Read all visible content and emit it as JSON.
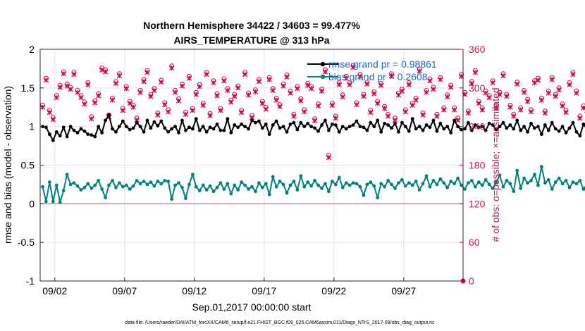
{
  "chart_data": {
    "type": "line",
    "title": "Northern Hemisphere 34422 / 34603 = 99.477%",
    "subtitle": "AIRS_TEMPERATURE @ 313 hPa",
    "xlabel": "Sep.01,2017 00:00:00 start",
    "ylabel": "rmse and bias (model - observation)",
    "ylabel_right": "# of obs: o=possible; ×=assimilated",
    "footer": "data file: /Users/raeder/DAI/ATM_forcXX/CAM6_setup/f.e21.FHIST_BGC.f09_025.CAM6assim.011/Diags_NTrS_2017-09/obs_diag_output.nc",
    "xlim": [
      0.7,
      31.0
    ],
    "ylim": [
      -1,
      2
    ],
    "ylim_right": [
      0,
      360
    ],
    "x_ticks": [
      1.75,
      6.75,
      11.75,
      16.75,
      21.75,
      26.75
    ],
    "x_tick_labels": [
      "09/02",
      "09/07",
      "09/12",
      "09/17",
      "09/22",
      "09/27"
    ],
    "y_ticks": [
      -1,
      -0.5,
      0,
      0.5,
      1,
      1.5,
      2
    ],
    "y_tick_labels": [
      "-1",
      "-0.5",
      "0",
      "0.5",
      "1",
      "1.5",
      "2"
    ],
    "y_ticks_right": [
      0,
      60,
      120,
      180,
      240,
      300,
      360
    ],
    "y_tick_labels_right": [
      "0",
      "60",
      "120",
      "180",
      "240",
      "300",
      "360"
    ],
    "grid": true,
    "legend_position": "top-right",
    "colors": {
      "rmse": "#000000",
      "bias": "#008080",
      "count": "#d6004f",
      "zero_line": "#c48a8a",
      "grid": "#e3e3e3",
      "legend_text": "#1565e0"
    },
    "x_start": 0.875,
    "x_step": 0.25,
    "series": [
      {
        "name": "rmse grand pr = 0.98861",
        "values": [
          1.0,
          0.99,
          0.9,
          0.82,
          0.93,
          0.88,
          0.99,
          0.87,
          1.0,
          0.95,
          0.92,
          0.97,
          0.94,
          0.9,
          0.89,
          0.87,
          1.0,
          0.92,
          1.08,
          1.15,
          0.97,
          0.93,
          1.0,
          1.07,
          1.0,
          0.96,
          0.98,
          1.05,
          1.0,
          0.93,
          1.08,
          0.98,
          1.06,
          1.01,
          1.07,
          0.98,
          0.93,
          0.97,
          1.0,
          0.92,
          1.08,
          0.95,
          0.99,
          0.97,
          1.1,
          0.95,
          1.0,
          0.93,
          0.99,
          0.97,
          1.03,
          0.95,
          0.95,
          1.1,
          0.92,
          1.02,
          0.99,
          1.03,
          1.0,
          0.97,
          1.08,
          1.05,
          1.07,
          0.98,
          1.03,
          0.9,
          1.02,
          1.07,
          0.98,
          1.0,
          0.93,
          1.03,
          1.05,
          0.96,
          1.05,
          1.0,
          1.04,
          1.0,
          0.98,
          0.94,
          1.02,
          1.08,
          0.95,
          1.03,
          1.02,
          0.93,
          1.0,
          0.97,
          1.0,
          1.02,
          1.07,
          1.0,
          0.99,
          0.95,
          1.05,
          1.0,
          1.08,
          0.93,
          1.04,
          1.02,
          0.98,
          1.04,
          0.93,
          1.05,
          1.0,
          0.94,
          1.1,
          0.97,
          1.0,
          0.95,
          1.02,
          0.99,
          1.08,
          0.94,
          1.04,
          0.97,
          1.0,
          0.92,
          1.08,
          1.0,
          0.96,
          0.97,
          1.05,
          0.95,
          1.02,
          0.99,
          1.0,
          0.95,
          1.04,
          1.02,
          0.96,
          1.0,
          1.05,
          0.98,
          1.02,
          0.97,
          1.08,
          0.95,
          1.0,
          0.93,
          1.04,
          0.98,
          1.0,
          0.9,
          1.02,
          0.95,
          1.05,
          0.97,
          0.94,
          1.0,
          0.92,
          0.98,
          1.05,
          0.93,
          0.88,
          1.03,
          0.97,
          1.0,
          0.93,
          0.98,
          1.05,
          1.1,
          0.92,
          1.0,
          1.04,
          0.95,
          1.14,
          0.9,
          1.05,
          0.96,
          1.05,
          0.97,
          1.0,
          1.08,
          1.02,
          0.96,
          1.12,
          1.16,
          1.14,
          1.02,
          1.09,
          1.17,
          1.03,
          1.14,
          1.11,
          1.02
        ]
      },
      {
        "name": "bias grand pr = 0.2608",
        "values": [
          0.22,
          0.03,
          0.28,
          0.03,
          0.24,
          0.02,
          0.17,
          0.38,
          0.25,
          0.27,
          0.23,
          0.18,
          0.21,
          0.26,
          0.2,
          0.24,
          0.3,
          0.19,
          0.08,
          0.24,
          0.3,
          0.21,
          0.27,
          0.22,
          0.24,
          0.19,
          0.23,
          0.3,
          0.26,
          0.29,
          0.25,
          0.28,
          0.23,
          0.29,
          0.26,
          0.3,
          0.29,
          0.06,
          0.24,
          0.27,
          0.21,
          0.07,
          0.25,
          0.38,
          0.22,
          0.17,
          0.24,
          0.18,
          0.23,
          0.16,
          0.21,
          0.27,
          0.19,
          0.26,
          0.13,
          0.24,
          0.18,
          0.28,
          0.24,
          0.19,
          0.22,
          0.16,
          0.27,
          0.21,
          0.26,
          0.12,
          0.35,
          0.22,
          0.29,
          0.25,
          0.14,
          0.24,
          0.29,
          0.18,
          0.36,
          0.22,
          0.28,
          0.23,
          0.3,
          0.24,
          0.2,
          0.26,
          0.16,
          0.29,
          0.25,
          0.34,
          0.21,
          0.27,
          0.24,
          0.27,
          0.26,
          0.22,
          0.11,
          0.25,
          0.28,
          0.23,
          0.08,
          0.26,
          0.22,
          0.3,
          0.25,
          0.2,
          0.27,
          0.31,
          0.23,
          0.27,
          0.24,
          0.29,
          0.18,
          0.26,
          0.36,
          0.22,
          0.3,
          0.25,
          0.32,
          0.27,
          0.21,
          0.29,
          0.26,
          0.33,
          0.24,
          0.19,
          0.27,
          0.3,
          0.22,
          0.28,
          0.24,
          0.31,
          0.25,
          0.2,
          0.28,
          0.37,
          0.22,
          0.3,
          0.26,
          0.16,
          0.43,
          0.2,
          0.33,
          0.27,
          0.3,
          0.38,
          0.24,
          0.48,
          0.27,
          0.31,
          0.19,
          0.28,
          0.33,
          0.26,
          0.3,
          0.21,
          0.28,
          0.26,
          0.3,
          0.19,
          0.25,
          0.16,
          0.33,
          0.22,
          0.18,
          0.24,
          0.21,
          0.28,
          0.2,
          0.22,
          0.18,
          0.25,
          0.21,
          0.3,
          0.26,
          0.36,
          0.3,
          0.33,
          0.27,
          0.3,
          0.32,
          0.37,
          0.43,
          0.33,
          0.29,
          0.53,
          0.37,
          0.28,
          0.4,
          0.33,
          0.36,
          0.53,
          0.26,
          0.31,
          0.34
        ]
      },
      {
        "name": "# of obs",
        "values": [
          270,
          312,
          262,
          251,
          285,
          301,
          322,
          303,
          298,
          321,
          293,
          285,
          275,
          305,
          252,
          277,
          288,
          328,
          325,
          255,
          281,
          307,
          319,
          265,
          299,
          276,
          270,
          250,
          293,
          310,
          324,
          287,
          296,
          258,
          309,
          274,
          263,
          331,
          293,
          280,
          303,
          259,
          315,
          265,
          290,
          302,
          273,
          321,
          257,
          308,
          288,
          265,
          311,
          296,
          278,
          287,
          300,
          262,
          321,
          289,
          254,
          294,
          310,
          276,
          267,
          313,
          296,
          281,
          271,
          303,
          317,
          292,
          256,
          299,
          280,
          263,
          304,
          299,
          249,
          272,
          295,
          325,
          192,
          273,
          253,
          305,
          286,
          315,
          305,
          332,
          274,
          318,
          287,
          306,
          262,
          291,
          276,
          304,
          268,
          256,
          319,
          250,
          289,
          295,
          263,
          305,
          273,
          281,
          326,
          258,
          293,
          311,
          298,
          256,
          313,
          266,
          286,
          301,
          266,
          250,
          318,
          290,
          261,
          307,
          324,
          276,
          266,
          292,
          285,
          308,
          269,
          290,
          319,
          287,
          270,
          256,
          306,
          266,
          293,
          279,
          263,
          308,
          312,
          281,
          261,
          292,
          313,
          287,
          297,
          272,
          262,
          305,
          321,
          292,
          253,
          269,
          265,
          275,
          311,
          256,
          278,
          316,
          256,
          318,
          268,
          305,
          308,
          288,
          257,
          281,
          303,
          268,
          295,
          318,
          303,
          294,
          275,
          281,
          257,
          306,
          264,
          249,
          256,
          287,
          308,
          283
        ]
      }
    ],
    "possible_offset": 3,
    "last_point_right": {
      "x": 31.0,
      "value": 0
    }
  }
}
